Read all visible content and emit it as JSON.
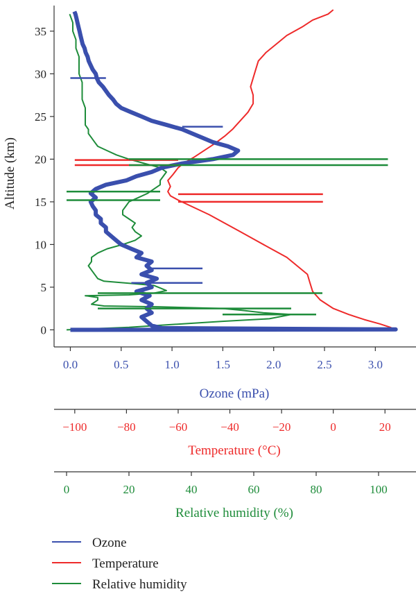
{
  "colors": {
    "ozone": "#3a4fad",
    "temperature": "#ee2a2a",
    "humidity": "#1e8c3a",
    "axis": "#333333"
  },
  "chart_data": {
    "type": "line",
    "ylabel": "Altitude (km)",
    "ylim": [
      -2,
      38
    ],
    "yticks": [
      "0",
      "5",
      "10",
      "15",
      "20",
      "25",
      "30",
      "35"
    ],
    "x_axes": [
      {
        "id": "ozone",
        "label": "Ozone (mPa)",
        "lim": [
          -0.16,
          3.4
        ],
        "ticks": [
          {
            "value": 0.0,
            "text": "0.0"
          },
          {
            "value": 0.5,
            "text": "0.5"
          },
          {
            "value": 1.0,
            "text": "1.0"
          },
          {
            "value": 1.5,
            "text": "1.5"
          },
          {
            "value": 2.0,
            "text": "2.0"
          },
          {
            "value": 2.5,
            "text": "2.5"
          },
          {
            "value": 3.0,
            "text": "3.0"
          }
        ]
      },
      {
        "id": "temperature",
        "label": "Temperature (°C)",
        "lim": [
          -108,
          32
        ],
        "ticks": [
          {
            "value": -100,
            "text": "−100"
          },
          {
            "value": -80,
            "text": "−80"
          },
          {
            "value": -60,
            "text": "−60"
          },
          {
            "value": -40,
            "text": "−40"
          },
          {
            "value": -20,
            "text": "−20"
          },
          {
            "value": 0,
            "text": "0"
          },
          {
            "value": 20,
            "text": "20"
          }
        ]
      },
      {
        "id": "humidity",
        "label": "Relative humidity (%)",
        "lim": [
          -4,
          112
        ],
        "ticks": [
          {
            "value": 0,
            "text": "0"
          },
          {
            "value": 20,
            "text": "20"
          },
          {
            "value": 40,
            "text": "40"
          },
          {
            "value": 60,
            "text": "60"
          },
          {
            "value": 80,
            "text": "80"
          },
          {
            "value": 100,
            "text": "100"
          }
        ]
      }
    ],
    "legend": {
      "placement": "bottom-left",
      "entries": [
        "Ozone",
        "Temperature",
        "Relative humidity"
      ]
    },
    "series": [
      {
        "name": "Ozone",
        "axis": "ozone",
        "points": [
          [
            0.0,
            0.0
          ],
          [
            3.2,
            0.05
          ],
          [
            0.9,
            0.2
          ],
          [
            0.8,
            0.5
          ],
          [
            0.75,
            1.0
          ],
          [
            0.7,
            1.5
          ],
          [
            0.8,
            2.0
          ],
          [
            0.75,
            2.5
          ],
          [
            0.8,
            3.0
          ],
          [
            0.7,
            3.5
          ],
          [
            0.78,
            4.0
          ],
          [
            0.65,
            4.5
          ],
          [
            0.8,
            5.0
          ],
          [
            0.75,
            5.5
          ],
          [
            0.85,
            6.0
          ],
          [
            0.7,
            6.5
          ],
          [
            0.8,
            7.0
          ],
          [
            0.75,
            7.5
          ],
          [
            0.8,
            8.0
          ],
          [
            0.65,
            8.5
          ],
          [
            0.7,
            9.0
          ],
          [
            0.6,
            9.5
          ],
          [
            0.5,
            10.0
          ],
          [
            0.45,
            10.5
          ],
          [
            0.4,
            11.0
          ],
          [
            0.35,
            11.5
          ],
          [
            0.35,
            12.0
          ],
          [
            0.3,
            12.5
          ],
          [
            0.3,
            13.0
          ],
          [
            0.25,
            13.5
          ],
          [
            0.25,
            14.0
          ],
          [
            0.22,
            14.5
          ],
          [
            0.2,
            15.0
          ],
          [
            0.25,
            15.5
          ],
          [
            0.2,
            16.0
          ],
          [
            0.25,
            16.5
          ],
          [
            0.35,
            17.0
          ],
          [
            0.55,
            17.5
          ],
          [
            0.65,
            18.0
          ],
          [
            0.8,
            18.5
          ],
          [
            0.9,
            19.0
          ],
          [
            1.1,
            19.5
          ],
          [
            1.4,
            20.0
          ],
          [
            1.6,
            20.5
          ],
          [
            1.65,
            21.0
          ],
          [
            1.55,
            21.5
          ],
          [
            1.4,
            22.0
          ],
          [
            1.3,
            22.5
          ],
          [
            1.2,
            23.0
          ],
          [
            1.1,
            23.5
          ],
          [
            0.95,
            24.0
          ],
          [
            0.8,
            24.5
          ],
          [
            0.7,
            25.0
          ],
          [
            0.6,
            25.5
          ],
          [
            0.5,
            26.0
          ],
          [
            0.45,
            26.5
          ],
          [
            0.42,
            27.0
          ],
          [
            0.38,
            27.5
          ],
          [
            0.35,
            28.0
          ],
          [
            0.32,
            28.5
          ],
          [
            0.28,
            29.0
          ],
          [
            0.26,
            29.5
          ],
          [
            0.25,
            30.0
          ],
          [
            0.22,
            30.5
          ],
          [
            0.2,
            31.0
          ],
          [
            0.18,
            31.5
          ],
          [
            0.17,
            32.0
          ],
          [
            0.15,
            32.5
          ],
          [
            0.14,
            33.0
          ],
          [
            0.12,
            33.5
          ],
          [
            0.11,
            34.0
          ],
          [
            0.1,
            34.5
          ],
          [
            0.09,
            35.0
          ],
          [
            0.08,
            35.5
          ],
          [
            0.07,
            36.0
          ],
          [
            0.06,
            36.5
          ],
          [
            0.05,
            37.0
          ],
          [
            0.04,
            37.3
          ]
        ]
      },
      {
        "name": "Temperature",
        "axis": "temperature",
        "points": [
          [
            24,
            0.0
          ],
          [
            22,
            0.3
          ],
          [
            18,
            0.7
          ],
          [
            12,
            1.2
          ],
          [
            6,
            1.8
          ],
          [
            0,
            2.5
          ],
          [
            -5,
            3.5
          ],
          [
            -8,
            4.5
          ],
          [
            -9,
            5.5
          ],
          [
            -10,
            6.5
          ],
          [
            -14,
            7.5
          ],
          [
            -18,
            8.5
          ],
          [
            -24,
            9.5
          ],
          [
            -30,
            10.5
          ],
          [
            -36,
            11.5
          ],
          [
            -42,
            12.5
          ],
          [
            -48,
            13.5
          ],
          [
            -55,
            14.5
          ],
          [
            -60,
            15.2
          ],
          [
            -63,
            15.7
          ],
          [
            -64,
            16.2
          ],
          [
            -63,
            16.8
          ],
          [
            -64,
            17.5
          ],
          [
            -62,
            18.2
          ],
          [
            -60,
            19.0
          ],
          [
            -58,
            19.5
          ],
          [
            -54,
            20.2
          ],
          [
            -50,
            21.0
          ],
          [
            -46,
            21.8
          ],
          [
            -42,
            22.7
          ],
          [
            -39,
            23.5
          ],
          [
            -36,
            24.5
          ],
          [
            -33,
            25.5
          ],
          [
            -31,
            26.5
          ],
          [
            -31,
            27.5
          ],
          [
            -32,
            28.5
          ],
          [
            -31,
            29.5
          ],
          [
            -30,
            30.5
          ],
          [
            -29,
            31.5
          ],
          [
            -26,
            32.5
          ],
          [
            -22,
            33.5
          ],
          [
            -18,
            34.5
          ],
          [
            -12,
            35.5
          ],
          [
            -8,
            36.3
          ],
          [
            -2,
            37.0
          ],
          [
            0,
            37.5
          ]
        ]
      },
      {
        "name": "Relative humidity",
        "axis": "humidity",
        "points": [
          [
            0,
            0.0
          ],
          [
            20,
            0.3
          ],
          [
            50,
            1.0
          ],
          [
            65,
            1.3
          ],
          [
            72,
            1.8
          ],
          [
            63,
            2.0
          ],
          [
            56,
            2.3
          ],
          [
            50,
            2.5
          ],
          [
            30,
            2.7
          ],
          [
            12,
            2.8
          ],
          [
            8,
            3.0
          ],
          [
            10,
            3.5
          ],
          [
            10,
            3.8
          ],
          [
            6,
            4.0
          ],
          [
            20,
            4.1
          ],
          [
            28,
            4.3
          ],
          [
            32,
            4.6
          ],
          [
            30,
            4.9
          ],
          [
            28,
            5.2
          ],
          [
            22,
            5.4
          ],
          [
            12,
            5.7
          ],
          [
            10,
            6.0
          ],
          [
            9,
            6.5
          ],
          [
            8,
            7.0
          ],
          [
            7,
            7.5
          ],
          [
            8,
            8.0
          ],
          [
            8,
            8.5
          ],
          [
            10,
            9.0
          ],
          [
            13,
            9.5
          ],
          [
            18,
            10.0
          ],
          [
            22,
            10.5
          ],
          [
            24,
            11.0
          ],
          [
            22,
            11.5
          ],
          [
            21,
            12.0
          ],
          [
            22,
            12.5
          ],
          [
            20,
            13.0
          ],
          [
            18,
            13.5
          ],
          [
            18,
            14.0
          ],
          [
            19,
            14.5
          ],
          [
            20,
            15.0
          ],
          [
            23,
            15.5
          ],
          [
            26,
            16.0
          ],
          [
            28,
            16.5
          ],
          [
            30,
            17.0
          ],
          [
            30,
            17.5
          ],
          [
            31,
            18.0
          ],
          [
            32,
            18.5
          ],
          [
            30,
            19.0
          ],
          [
            25,
            19.5
          ],
          [
            20,
            20.0
          ],
          [
            16,
            20.5
          ],
          [
            13,
            21.0
          ],
          [
            10,
            21.5
          ],
          [
            9,
            22.0
          ],
          [
            8,
            22.5
          ],
          [
            7,
            23.0
          ],
          [
            7,
            23.5
          ],
          [
            6,
            24.0
          ],
          [
            6,
            25.0
          ],
          [
            6,
            26.0
          ],
          [
            5,
            27.0
          ],
          [
            5,
            28.0
          ],
          [
            5,
            29.0
          ],
          [
            4,
            30.0
          ],
          [
            4,
            31.0
          ],
          [
            4,
            32.0
          ],
          [
            3,
            33.0
          ],
          [
            3,
            34.0
          ],
          [
            2,
            35.0
          ],
          [
            2,
            36.0
          ],
          [
            1,
            37.0
          ]
        ]
      }
    ],
    "spikes": [
      {
        "axis": "temperature",
        "alt": 19.3,
        "x0": -100,
        "x1": -60
      },
      {
        "axis": "temperature",
        "alt": 19.9,
        "x0": -100,
        "x1": -60
      },
      {
        "axis": "temperature",
        "alt": 15.0,
        "x0": -60,
        "x1": -4
      },
      {
        "axis": "temperature",
        "alt": 15.9,
        "x0": -60,
        "x1": -4
      },
      {
        "axis": "humidity",
        "alt": 19.3,
        "x0": 20,
        "x1": 103
      },
      {
        "axis": "humidity",
        "alt": 20.0,
        "x0": 20,
        "x1": 103
      },
      {
        "axis": "humidity",
        "alt": 15.2,
        "x0": 0,
        "x1": 30
      },
      {
        "axis": "humidity",
        "alt": 16.2,
        "x0": 0,
        "x1": 30
      },
      {
        "axis": "humidity",
        "alt": 4.3,
        "x0": 10,
        "x1": 82
      },
      {
        "axis": "humidity",
        "alt": 2.5,
        "x0": 10,
        "x1": 72
      },
      {
        "axis": "humidity",
        "alt": 1.8,
        "x0": 50,
        "x1": 80
      },
      {
        "axis": "ozone",
        "alt": 29.5,
        "x0": 0.0,
        "x1": 0.35
      },
      {
        "axis": "ozone",
        "alt": 23.8,
        "x0": 1.1,
        "x1": 1.5
      },
      {
        "axis": "ozone",
        "alt": 5.5,
        "x0": 0.6,
        "x1": 1.3
      },
      {
        "axis": "ozone",
        "alt": 7.2,
        "x0": 0.8,
        "x1": 1.3
      }
    ]
  }
}
